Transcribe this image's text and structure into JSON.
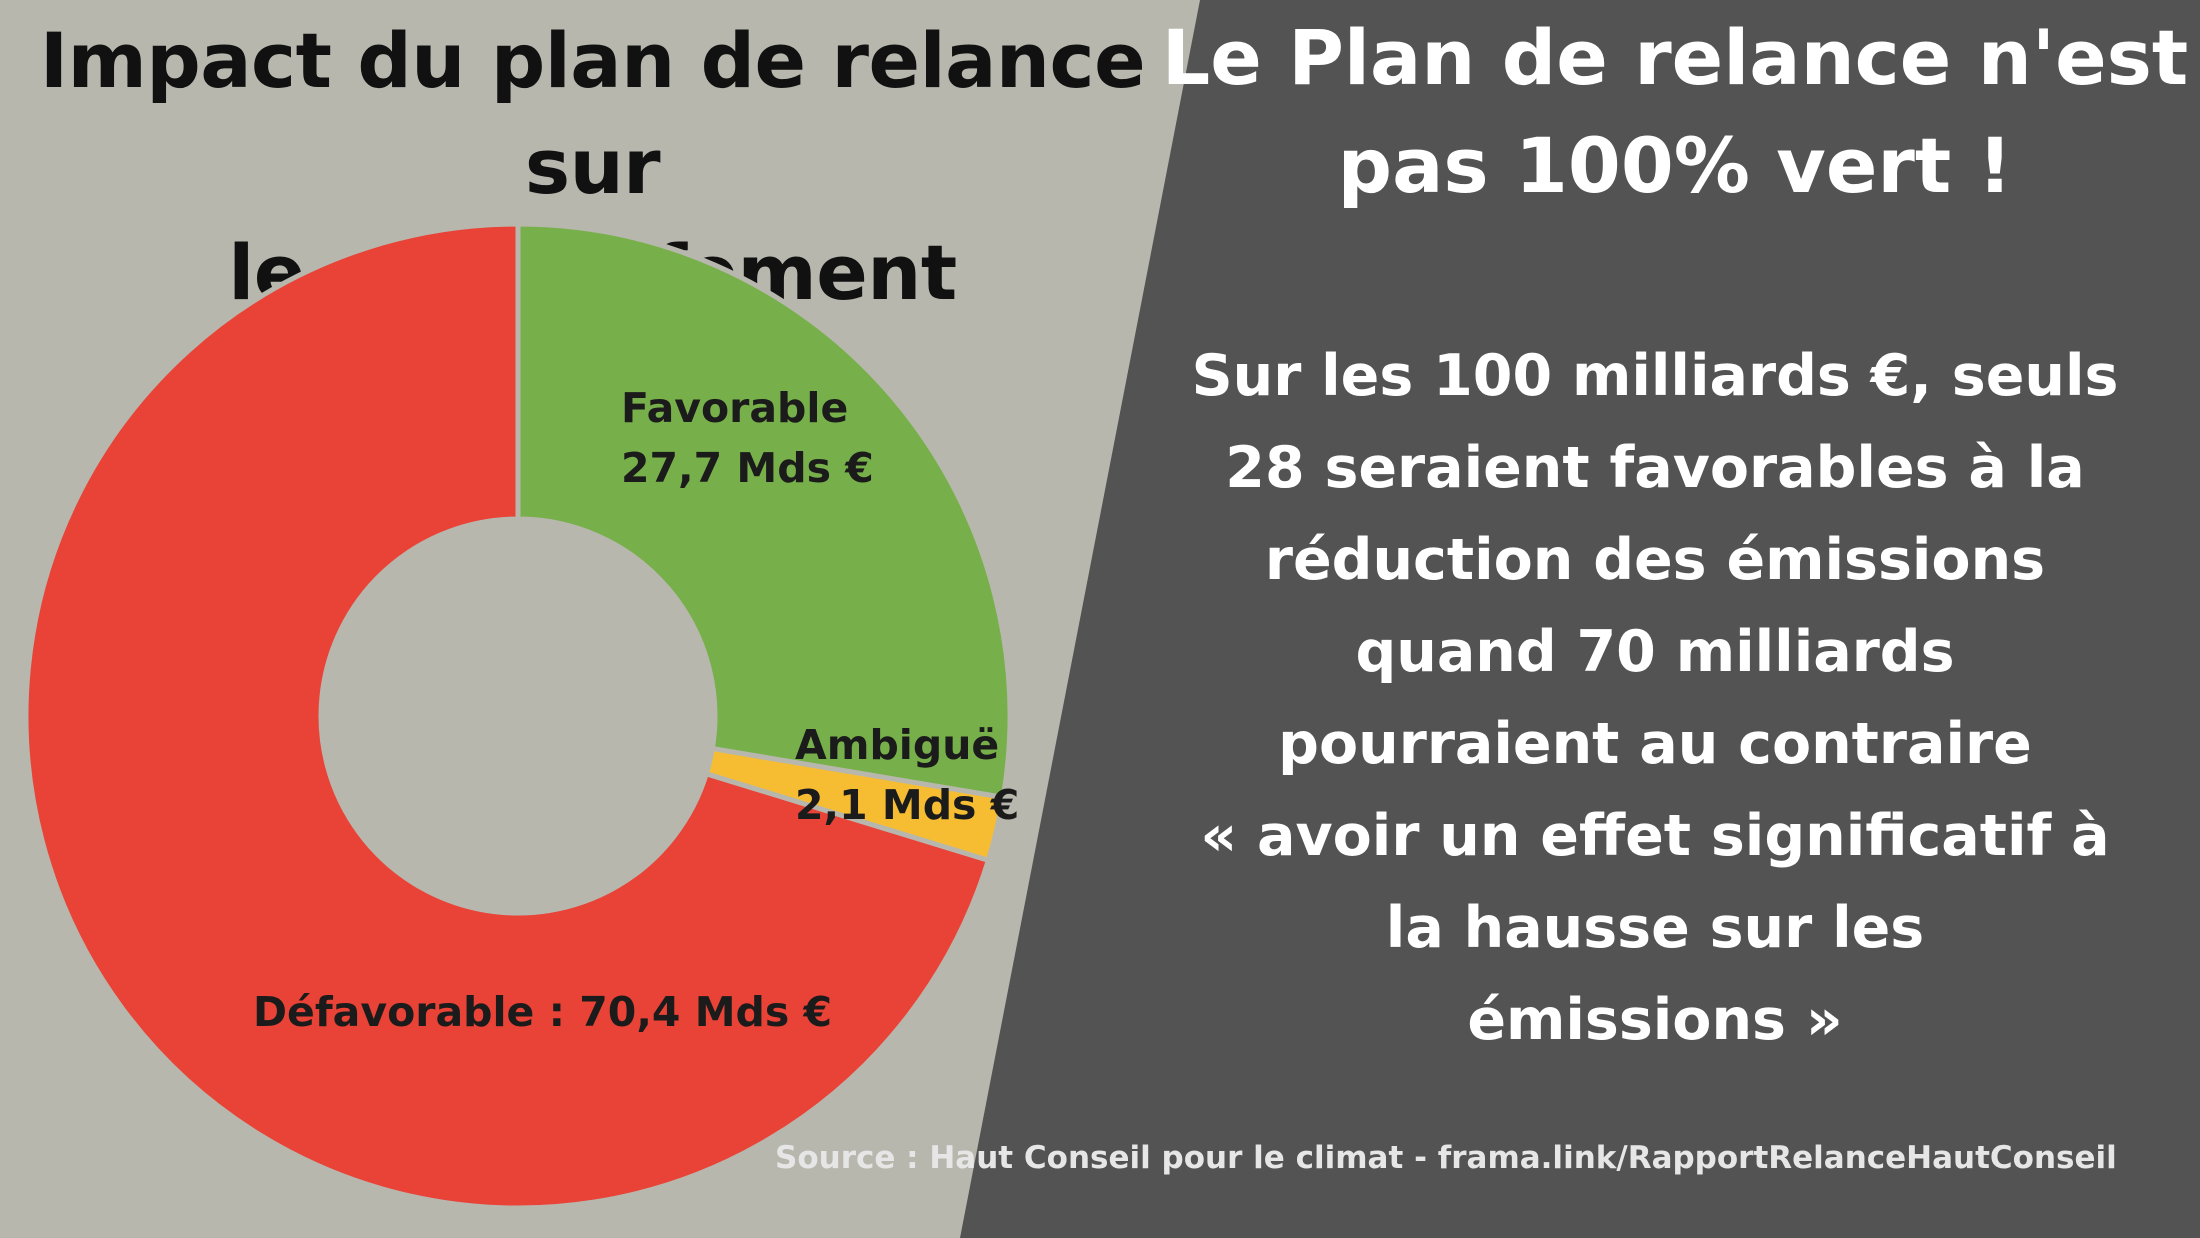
{
  "background": {
    "left_color": "#b8b7ae",
    "right_color": "#535353"
  },
  "left_title": {
    "line1": "Impact du plan de relance sur",
    "line2": "le réchauffement climatique"
  },
  "right_title": {
    "line1": "Le Plan de relance n'est",
    "line2": "pas 100% vert !"
  },
  "right_body": {
    "lines": [
      "Sur les 100 milliards €, seuls",
      "28 seraient favorables à la",
      "réduction des émissions",
      "quand 70 milliards",
      "pourraient au contraire",
      "« avoir un effet significatif à",
      "la hausse sur les",
      "émissions »"
    ]
  },
  "labels": {
    "favorable": {
      "name": "Favorable",
      "value": "27,7 Mds €"
    },
    "ambigue": {
      "name": "Ambiguë",
      "value": "2,1 Mds €"
    },
    "defavorable": "Défavorable : 70,4 Mds €"
  },
  "source": "Source : Haut Conseil pour le climat - frama.link/RapportRelanceHautConseil",
  "chart_data": {
    "type": "pie",
    "variant": "donut",
    "title": "Impact du plan de relance sur le réchauffement climatique",
    "slices": [
      {
        "label": "Favorable",
        "value": 27.7,
        "unit": "Mds €",
        "color": "#77b04a"
      },
      {
        "label": "Ambiguë",
        "value": 2.1,
        "unit": "Mds €",
        "color": "#f6bd32"
      },
      {
        "label": "Défavorable",
        "value": 70.4,
        "unit": "Mds €",
        "color": "#e84336"
      }
    ],
    "start": "12 o'clock, clockwise",
    "legend": "none (data labels on slices)"
  }
}
